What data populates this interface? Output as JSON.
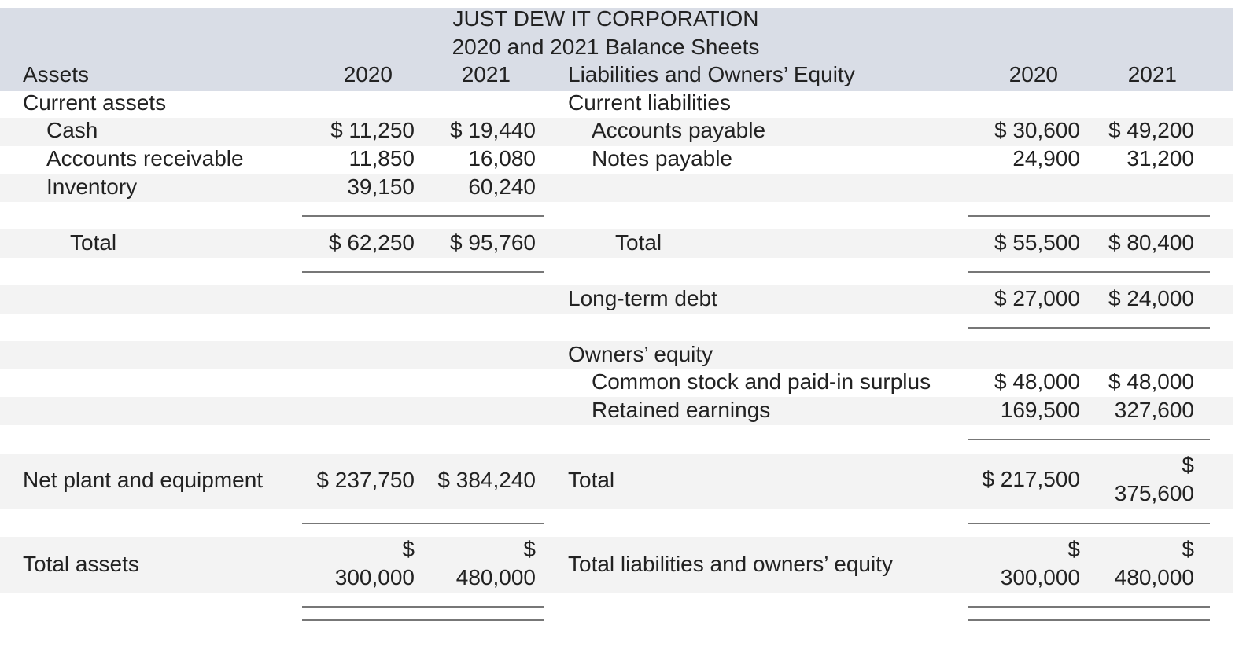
{
  "header": {
    "company": "JUST DEW IT CORPORATION",
    "subtitle": "2020 and 2021 Balance Sheets",
    "assets_heading": "Assets",
    "liab_heading": "Liabilities and Owners’ Equity",
    "year_2020": "2020",
    "year_2021": "2021"
  },
  "assets": {
    "current_assets_label": "Current assets",
    "cash": {
      "label": "Cash",
      "v2020": "$ 11,250",
      "v2021": "$ 19,440"
    },
    "receivable": {
      "label": "Accounts receivable",
      "v2020": "11,850",
      "v2021": "16,080"
    },
    "inventory": {
      "label": "Inventory",
      "v2020": "39,150",
      "v2021": "60,240"
    },
    "total": {
      "label": "Total",
      "v2020": "$ 62,250",
      "v2021": "$ 95,760"
    },
    "net_plant": {
      "label": "Net plant and equipment",
      "v2020": "$ 237,750",
      "v2021": "$ 384,240"
    },
    "total_assets": {
      "label": "Total assets",
      "d2020": "$",
      "v2020": "300,000",
      "d2021": "$",
      "v2021": "480,000"
    }
  },
  "liabilities": {
    "current_label": "Current liabilities",
    "payable": {
      "label": "Accounts payable",
      "v2020": "$ 30,600",
      "v2021": "$ 49,200"
    },
    "notes": {
      "label": "Notes payable",
      "v2020": "24,900",
      "v2021": "31,200"
    },
    "total": {
      "label": "Total",
      "v2020": "$ 55,500",
      "v2021": "$ 80,400"
    },
    "long_term": {
      "label": "Long-term debt",
      "v2020": "$ 27,000",
      "v2021": "$ 24,000"
    },
    "equity_label": "Owners’ equity",
    "common": {
      "label": "Common stock and paid-in surplus",
      "v2020": "$ 48,000",
      "v2021": "$ 48,000"
    },
    "retained": {
      "label": "Retained earnings",
      "v2020": "169,500",
      "v2021": "327,600"
    },
    "equity_total": {
      "label": "Total",
      "v2020": "$ 217,500",
      "d2021": "$",
      "v2021": "375,600"
    },
    "grand_total": {
      "label": "Total liabilities and owners’ equity",
      "d2020": "$",
      "v2020": "300,000",
      "d2021": "$",
      "v2021": "480,000"
    }
  }
}
